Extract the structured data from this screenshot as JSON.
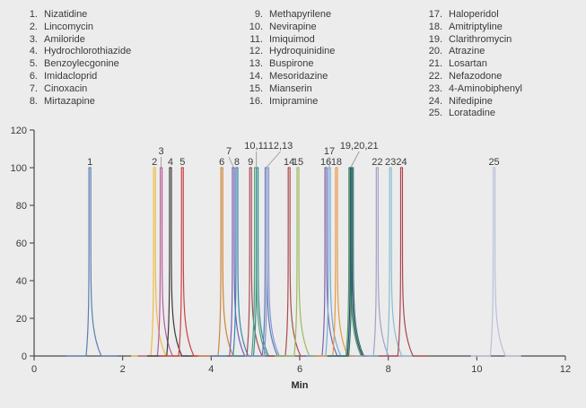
{
  "colors": {
    "background": "#ececec",
    "axis": "#4a4a4a",
    "text": "#3a3a3a",
    "leader_line": "#999999"
  },
  "legend": {
    "columns": [
      {
        "items": [
          {
            "num": "1.",
            "name": "Nizatidine"
          },
          {
            "num": "2.",
            "name": "Lincomycin"
          },
          {
            "num": "3.",
            "name": "Amiloride"
          },
          {
            "num": "4.",
            "name": "Hydrochlorothiazide"
          },
          {
            "num": "5.",
            "name": "Benzoylecgonine"
          },
          {
            "num": "6.",
            "name": "Imidacloprid"
          },
          {
            "num": "7.",
            "name": "Cinoxacin"
          },
          {
            "num": "8.",
            "name": "Mirtazapine"
          }
        ]
      },
      {
        "items": [
          {
            "num": "9.",
            "name": "Methapyrilene"
          },
          {
            "num": "10.",
            "name": "Nevirapine"
          },
          {
            "num": "11.",
            "name": "Imiquimod"
          },
          {
            "num": "12.",
            "name": "Hydroquinidine"
          },
          {
            "num": "13.",
            "name": "Buspirone"
          },
          {
            "num": "14.",
            "name": "Mesoridazine"
          },
          {
            "num": "15.",
            "name": "Mianserin"
          },
          {
            "num": "16.",
            "name": "Imipramine"
          }
        ]
      },
      {
        "items": [
          {
            "num": "17.",
            "name": "Haloperidol"
          },
          {
            "num": "18.",
            "name": "Amitriptyline"
          },
          {
            "num": "19.",
            "name": "Clarithromycin"
          },
          {
            "num": "20.",
            "name": "Atrazine"
          },
          {
            "num": "21.",
            "name": "Losartan"
          },
          {
            "num": "22.",
            "name": "Nefazodone"
          },
          {
            "num": "23.",
            "name": "4-Aminobiphenyl"
          },
          {
            "num": "24.",
            "name": "Nifedipine"
          },
          {
            "num": "25.",
            "name": "Loratadine"
          }
        ]
      }
    ]
  },
  "chart_data": {
    "type": "line",
    "title": "",
    "xlabel": "Min",
    "ylabel": "",
    "xlim": [
      0,
      12
    ],
    "ylim": [
      0,
      120
    ],
    "xticks": [
      0,
      2,
      4,
      6,
      8,
      10,
      12
    ],
    "yticks": [
      0,
      20,
      40,
      60,
      80,
      100,
      120
    ],
    "grid": false,
    "peaks": [
      {
        "label": "1",
        "compounds": [
          "Nizatidine"
        ],
        "rts": [
          1.26
        ],
        "height": 100,
        "colors": [
          "#5a7fb0"
        ],
        "label_style": "normal",
        "label_dx": 0
      },
      {
        "label": "2",
        "compounds": [
          "Lincomycin"
        ],
        "rts": [
          2.72
        ],
        "height": 100,
        "colors": [
          "#eebb44"
        ],
        "label_style": "normal",
        "label_dx": 0
      },
      {
        "label": "3",
        "compounds": [
          "Amiloride"
        ],
        "rts": [
          2.87
        ],
        "height": 100,
        "colors": [
          "#b85b9e"
        ],
        "label_style": "raised",
        "label_dx": 0
      },
      {
        "label": "4",
        "compounds": [
          "Hydrochlorothiazide"
        ],
        "rts": [
          3.08
        ],
        "height": 100,
        "colors": [
          "#3a3a3a"
        ],
        "label_style": "normal",
        "label_dx": 0
      },
      {
        "label": "5",
        "compounds": [
          "Benzoylecgonine"
        ],
        "rts": [
          3.35
        ],
        "height": 100,
        "colors": [
          "#cc4040"
        ],
        "label_style": "normal",
        "label_dx": 0
      },
      {
        "label": "6",
        "compounds": [
          "Imidacloprid"
        ],
        "rts": [
          4.24
        ],
        "height": 100,
        "colors": [
          "#cd8538"
        ],
        "label_style": "normal",
        "label_dx": 0
      },
      {
        "label": "7",
        "compounds": [
          "Cinoxacin"
        ],
        "rts": [
          4.5
        ],
        "height": 100,
        "colors": [
          "#7a5cb5"
        ],
        "label_style": "raised",
        "label_dx": -5
      },
      {
        "label": "8",
        "compounds": [
          "Mirtazapine"
        ],
        "rts": [
          4.58
        ],
        "height": 100,
        "colors": [
          "#3589ad"
        ],
        "label_style": "normal",
        "label_dx": 0
      },
      {
        "label": "9",
        "compounds": [
          "Methapyrilene"
        ],
        "rts": [
          4.89
        ],
        "height": 100,
        "colors": [
          "#ab4a56"
        ],
        "label_style": "normal",
        "label_dx": 0
      },
      {
        "label": "10,11",
        "compounds": [
          "Nevirapine",
          "Imiquimod"
        ],
        "rts": [
          5.0,
          5.04
        ],
        "height": 100,
        "colors": [
          "#4ba273",
          "#3a8f96"
        ],
        "label_style": "high",
        "label_dx": 0
      },
      {
        "label": "12,13",
        "compounds": [
          "Hydroquinidine",
          "Buspirone"
        ],
        "rts": [
          5.24,
          5.28
        ],
        "height": 100,
        "colors": [
          "#5b7abc",
          "#8b96cc"
        ],
        "label_style": "high",
        "label_dx": 15
      },
      {
        "label": "14",
        "compounds": [
          "Mesoridazine"
        ],
        "rts": [
          5.76
        ],
        "height": 100,
        "colors": [
          "#ad4a50"
        ],
        "label_style": "normal",
        "label_dx": 0
      },
      {
        "label": "15",
        "compounds": [
          "Mianserin"
        ],
        "rts": [
          5.96
        ],
        "height": 100,
        "colors": [
          "#9cba5e"
        ],
        "label_style": "normal",
        "label_dx": 0
      },
      {
        "label": "16",
        "compounds": [
          "Imipramine"
        ],
        "rts": [
          6.59
        ],
        "height": 100,
        "colors": [
          "#7a63ac"
        ],
        "label_style": "normal",
        "label_dx": 0
      },
      {
        "label": "17",
        "compounds": [
          "Haloperidol"
        ],
        "rts": [
          6.67
        ],
        "height": 100,
        "colors": [
          "#74aad6"
        ],
        "label_style": "raised",
        "label_dx": 0
      },
      {
        "label": "18",
        "compounds": [
          "Amitriptyline"
        ],
        "rts": [
          6.83
        ],
        "height": 100,
        "colors": [
          "#e89a42"
        ],
        "label_style": "normal",
        "label_dx": 0
      },
      {
        "label": "19,20,21",
        "compounds": [
          "Clarithromycin",
          "Atrazine",
          "Losartan"
        ],
        "rts": [
          7.13,
          7.16,
          7.19
        ],
        "height": 100,
        "colors": [
          "#4f9c5e",
          "#2e4576",
          "#2f7568"
        ],
        "label_style": "high",
        "label_dx": 9
      },
      {
        "label": "22",
        "compounds": [
          "Nefazodone"
        ],
        "rts": [
          7.75
        ],
        "height": 100,
        "colors": [
          "#a89ec6"
        ],
        "label_style": "normal",
        "label_dx": 0
      },
      {
        "label": "23",
        "compounds": [
          "4-Aminobiphenyl"
        ],
        "rts": [
          8.05
        ],
        "height": 100,
        "colors": [
          "#8abdd2"
        ],
        "label_style": "normal",
        "label_dx": 0
      },
      {
        "label": "24",
        "compounds": [
          "Nifedipine"
        ],
        "rts": [
          8.3
        ],
        "height": 100,
        "colors": [
          "#ad4450"
        ],
        "label_style": "normal",
        "label_dx": 0
      },
      {
        "label": "25",
        "compounds": [
          "Loratadine"
        ],
        "rts": [
          10.39
        ],
        "height": 100,
        "colors": [
          "#b9c1dc"
        ],
        "label_style": "normal",
        "label_dx": 0
      }
    ]
  }
}
